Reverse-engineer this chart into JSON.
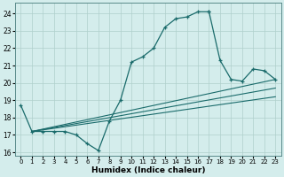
{
  "title": "",
  "xlabel": "Humidex (Indice chaleur)",
  "xlim": [
    -0.5,
    23.5
  ],
  "ylim": [
    15.8,
    24.6
  ],
  "yticks": [
    16,
    17,
    18,
    19,
    20,
    21,
    22,
    23,
    24
  ],
  "xticks": [
    0,
    1,
    2,
    3,
    4,
    5,
    6,
    7,
    8,
    9,
    10,
    11,
    12,
    13,
    14,
    15,
    16,
    17,
    18,
    19,
    20,
    21,
    22,
    23
  ],
  "bg_color": "#d4edec",
  "grid_color": "#afd0cc",
  "line_color": "#1a6b6b",
  "line1_x": [
    0,
    1,
    2,
    3,
    4,
    5,
    6,
    7,
    8,
    9,
    10,
    11,
    12,
    13,
    14,
    15,
    16,
    17
  ],
  "line1_y": [
    18.7,
    17.2,
    17.2,
    17.2,
    17.2,
    17.0,
    16.5,
    16.1,
    17.8,
    19.0,
    21.2,
    21.5,
    22.0,
    23.2,
    23.7,
    23.8,
    24.1,
    24.1
  ],
  "line2_x": [
    17,
    18,
    19,
    20,
    21,
    22,
    23
  ],
  "line2_y": [
    24.1,
    21.3,
    20.2,
    20.1,
    20.8,
    20.7,
    20.2
  ],
  "straight_lines": [
    {
      "x": [
        1,
        23
      ],
      "y": [
        17.2,
        20.2
      ]
    },
    {
      "x": [
        1,
        23
      ],
      "y": [
        17.2,
        19.7
      ]
    },
    {
      "x": [
        1,
        23
      ],
      "y": [
        17.2,
        19.2
      ]
    }
  ]
}
